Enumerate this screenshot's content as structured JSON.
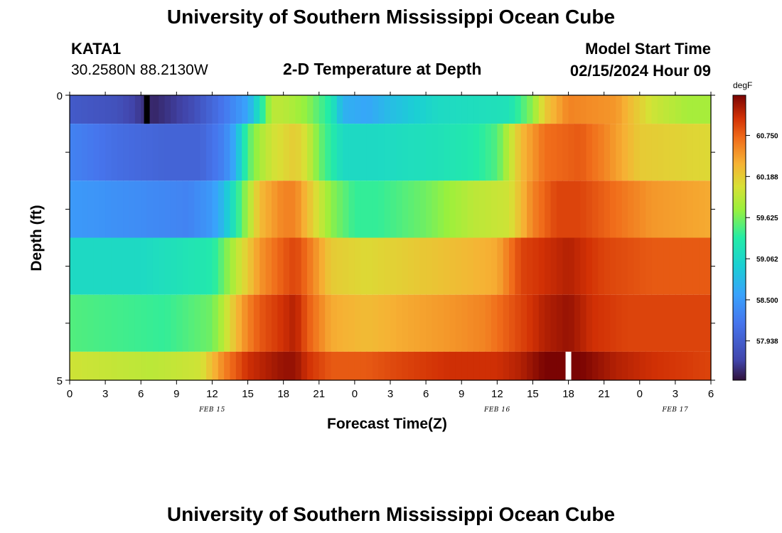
{
  "header": {
    "title": "University of Southern Mississippi Ocean Cube",
    "station_id": "KATA1",
    "station_coords": "30.2580N  88.2130W",
    "plot_title": "2-D Temperature at Depth",
    "model_start_label": "Model Start Time",
    "model_start_value": "02/15/2024 Hour 09"
  },
  "footer": {
    "title": "University of Southern Mississippi Ocean Cube"
  },
  "chart_data": {
    "type": "heatmap",
    "title": "2-D Temperature at Depth",
    "xlabel": "Forecast Time(Z)",
    "ylabel": "Depth (ft)",
    "units": "degF",
    "y_range": [
      0,
      5
    ],
    "y_tick_labels": [
      "0",
      "5"
    ],
    "x_range_hours": [
      0,
      54
    ],
    "x_tick_labels": [
      "0",
      "3",
      "6",
      "9",
      "12",
      "15",
      "18",
      "21",
      "0",
      "3",
      "6",
      "9",
      "12",
      "15",
      "18",
      "21",
      "0",
      "3",
      "6"
    ],
    "date_labels": [
      {
        "label": "FEB 15",
        "hour": 12
      },
      {
        "label": "FEB 16",
        "hour": 36
      },
      {
        "label": "FEB 17",
        "hour": 51
      }
    ],
    "color_range": [
      57.4,
      61.3
    ],
    "colorbar_ticks": [
      "60.750",
      "60.188",
      "59.625",
      "59.062",
      "58.500",
      "57.938"
    ],
    "colorbar_tick_values": [
      60.75,
      60.188,
      59.625,
      59.062,
      58.5,
      57.938
    ],
    "layers": [
      {
        "depth": "0-0.5 ft",
        "keyframes": [
          [
            0,
            57.9
          ],
          [
            4,
            57.8
          ],
          [
            7,
            57.5
          ],
          [
            10,
            57.7
          ],
          [
            13,
            58.2
          ],
          [
            15,
            58.6
          ],
          [
            16,
            59.2
          ],
          [
            17,
            59.9
          ],
          [
            18,
            59.9
          ],
          [
            20,
            59.7
          ],
          [
            22,
            59.3
          ],
          [
            23,
            58.7
          ],
          [
            25,
            58.6
          ],
          [
            27,
            58.8
          ],
          [
            31,
            59.1
          ],
          [
            37,
            59.2
          ],
          [
            39,
            59.7
          ],
          [
            40,
            60.2
          ],
          [
            42,
            60.6
          ],
          [
            46,
            60.5
          ],
          [
            49,
            60.0
          ],
          [
            52,
            59.8
          ],
          [
            54,
            59.8
          ]
        ]
      },
      {
        "depth": "0.5-1.5 ft",
        "keyframes": [
          [
            0,
            58.3
          ],
          [
            4,
            58.1
          ],
          [
            8,
            58.0
          ],
          [
            11,
            58.0
          ],
          [
            13,
            58.3
          ],
          [
            14,
            58.7
          ],
          [
            15,
            59.5
          ],
          [
            16,
            59.8
          ],
          [
            17,
            60.0
          ],
          [
            19,
            60.2
          ],
          [
            20,
            60.0
          ],
          [
            21,
            59.6
          ],
          [
            23,
            59.1
          ],
          [
            26,
            59.1
          ],
          [
            31,
            59.2
          ],
          [
            34,
            59.3
          ],
          [
            36,
            59.5
          ],
          [
            38,
            60.3
          ],
          [
            40,
            60.7
          ],
          [
            43,
            60.8
          ],
          [
            45,
            60.6
          ],
          [
            48,
            60.2
          ],
          [
            54,
            60.1
          ]
        ]
      },
      {
        "depth": "1.5-2.5 ft",
        "keyframes": [
          [
            0,
            58.5
          ],
          [
            5,
            58.4
          ],
          [
            10,
            58.3
          ],
          [
            12,
            58.5
          ],
          [
            13,
            58.8
          ],
          [
            14,
            59.3
          ],
          [
            15,
            59.8
          ],
          [
            16,
            60.3
          ],
          [
            18,
            60.6
          ],
          [
            19,
            60.6
          ],
          [
            20,
            60.3
          ],
          [
            22,
            59.7
          ],
          [
            24,
            59.4
          ],
          [
            26,
            59.4
          ],
          [
            30,
            59.6
          ],
          [
            34,
            59.9
          ],
          [
            37,
            60.0
          ],
          [
            39,
            60.6
          ],
          [
            41,
            60.9
          ],
          [
            43,
            60.9
          ],
          [
            46,
            60.7
          ],
          [
            49,
            60.5
          ],
          [
            54,
            60.4
          ]
        ]
      },
      {
        "depth": "2.5-3.5 ft",
        "keyframes": [
          [
            0,
            59.1
          ],
          [
            6,
            59.1
          ],
          [
            12,
            59.3
          ],
          [
            13,
            59.6
          ],
          [
            14,
            59.9
          ],
          [
            15,
            60.2
          ],
          [
            16,
            60.5
          ],
          [
            18,
            60.8
          ],
          [
            19,
            60.9
          ],
          [
            20,
            60.7
          ],
          [
            22,
            60.2
          ],
          [
            25,
            60.1
          ],
          [
            29,
            60.2
          ],
          [
            33,
            60.3
          ],
          [
            36,
            60.4
          ],
          [
            38,
            60.9
          ],
          [
            40,
            61.0
          ],
          [
            42,
            61.1
          ],
          [
            45,
            60.9
          ],
          [
            49,
            60.8
          ],
          [
            54,
            60.8
          ]
        ]
      },
      {
        "depth": "3.5-4.5 ft",
        "keyframes": [
          [
            0,
            59.5
          ],
          [
            8,
            59.4
          ],
          [
            12,
            59.6
          ],
          [
            13,
            59.9
          ],
          [
            14,
            60.3
          ],
          [
            15,
            60.6
          ],
          [
            16,
            60.8
          ],
          [
            18,
            61.0
          ],
          [
            19,
            61.1
          ],
          [
            20,
            60.8
          ],
          [
            22,
            60.4
          ],
          [
            25,
            60.3
          ],
          [
            28,
            60.4
          ],
          [
            32,
            60.5
          ],
          [
            35,
            60.6
          ],
          [
            37,
            60.8
          ],
          [
            40,
            61.1
          ],
          [
            42,
            61.2
          ],
          [
            44,
            61.0
          ],
          [
            47,
            60.9
          ],
          [
            54,
            60.9
          ]
        ]
      },
      {
        "depth": "4.5-5 ft",
        "keyframes": [
          [
            0,
            60.0
          ],
          [
            7,
            59.9
          ],
          [
            11,
            60.0
          ],
          [
            12,
            60.3
          ],
          [
            13,
            60.6
          ],
          [
            14,
            60.8
          ],
          [
            15,
            61.0
          ],
          [
            18,
            61.2
          ],
          [
            19,
            61.2
          ],
          [
            20,
            61.0
          ],
          [
            22,
            60.8
          ],
          [
            25,
            60.8
          ],
          [
            28,
            60.9
          ],
          [
            32,
            61.0
          ],
          [
            36,
            61.0
          ],
          [
            38,
            61.1
          ],
          [
            40,
            61.3
          ],
          [
            41,
            61.35
          ],
          [
            43,
            61.3
          ],
          [
            46,
            61.1
          ],
          [
            49,
            61.0
          ],
          [
            54,
            60.9
          ]
        ]
      }
    ],
    "missing_markers": [
      {
        "hour": 6.5,
        "layer": 0,
        "color": "#000000"
      },
      {
        "hour": 42,
        "layer": 5,
        "color": "#ffffff"
      }
    ]
  }
}
